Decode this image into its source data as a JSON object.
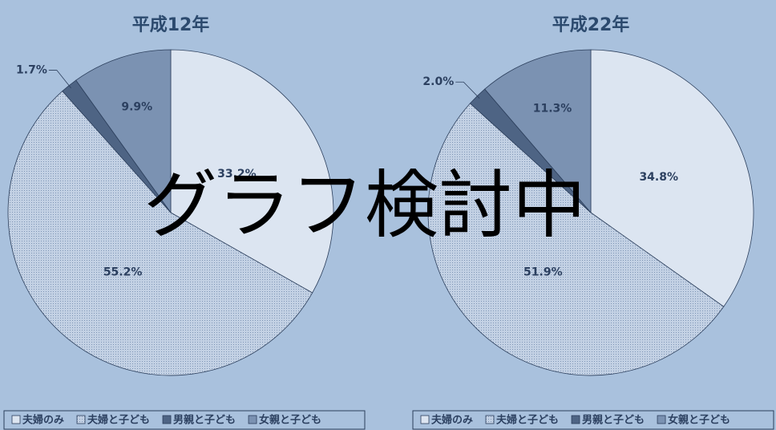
{
  "chart_data": [
    {
      "type": "pie",
      "title": "平成12年",
      "categories": [
        "夫婦のみ",
        "夫婦と子ども",
        "男親と子ども",
        "女親と子ども"
      ],
      "values": [
        33.2,
        55.2,
        1.7,
        9.9
      ],
      "value_labels": [
        "33.2%",
        "55.2%",
        "1.7%",
        "9.9%"
      ],
      "colors": [
        "#dce5f1",
        "#bccbe0",
        "#4e6484",
        "#7b92b2"
      ],
      "patterns": [
        "none",
        "dots",
        "none",
        "none"
      ]
    },
    {
      "type": "pie",
      "title": "平成22年",
      "categories": [
        "夫婦のみ",
        "夫婦と子ども",
        "男親と子ども",
        "女親と子ども"
      ],
      "values": [
        34.8,
        51.9,
        2.0,
        11.3
      ],
      "value_labels": [
        "34.8%",
        "51.9%",
        "2.0%",
        "11.3%"
      ],
      "colors": [
        "#dce5f1",
        "#bccbe0",
        "#4e6484",
        "#7b92b2"
      ],
      "patterns": [
        "none",
        "dots",
        "none",
        "none"
      ]
    }
  ],
  "overlay_text": "グラフ検討中"
}
